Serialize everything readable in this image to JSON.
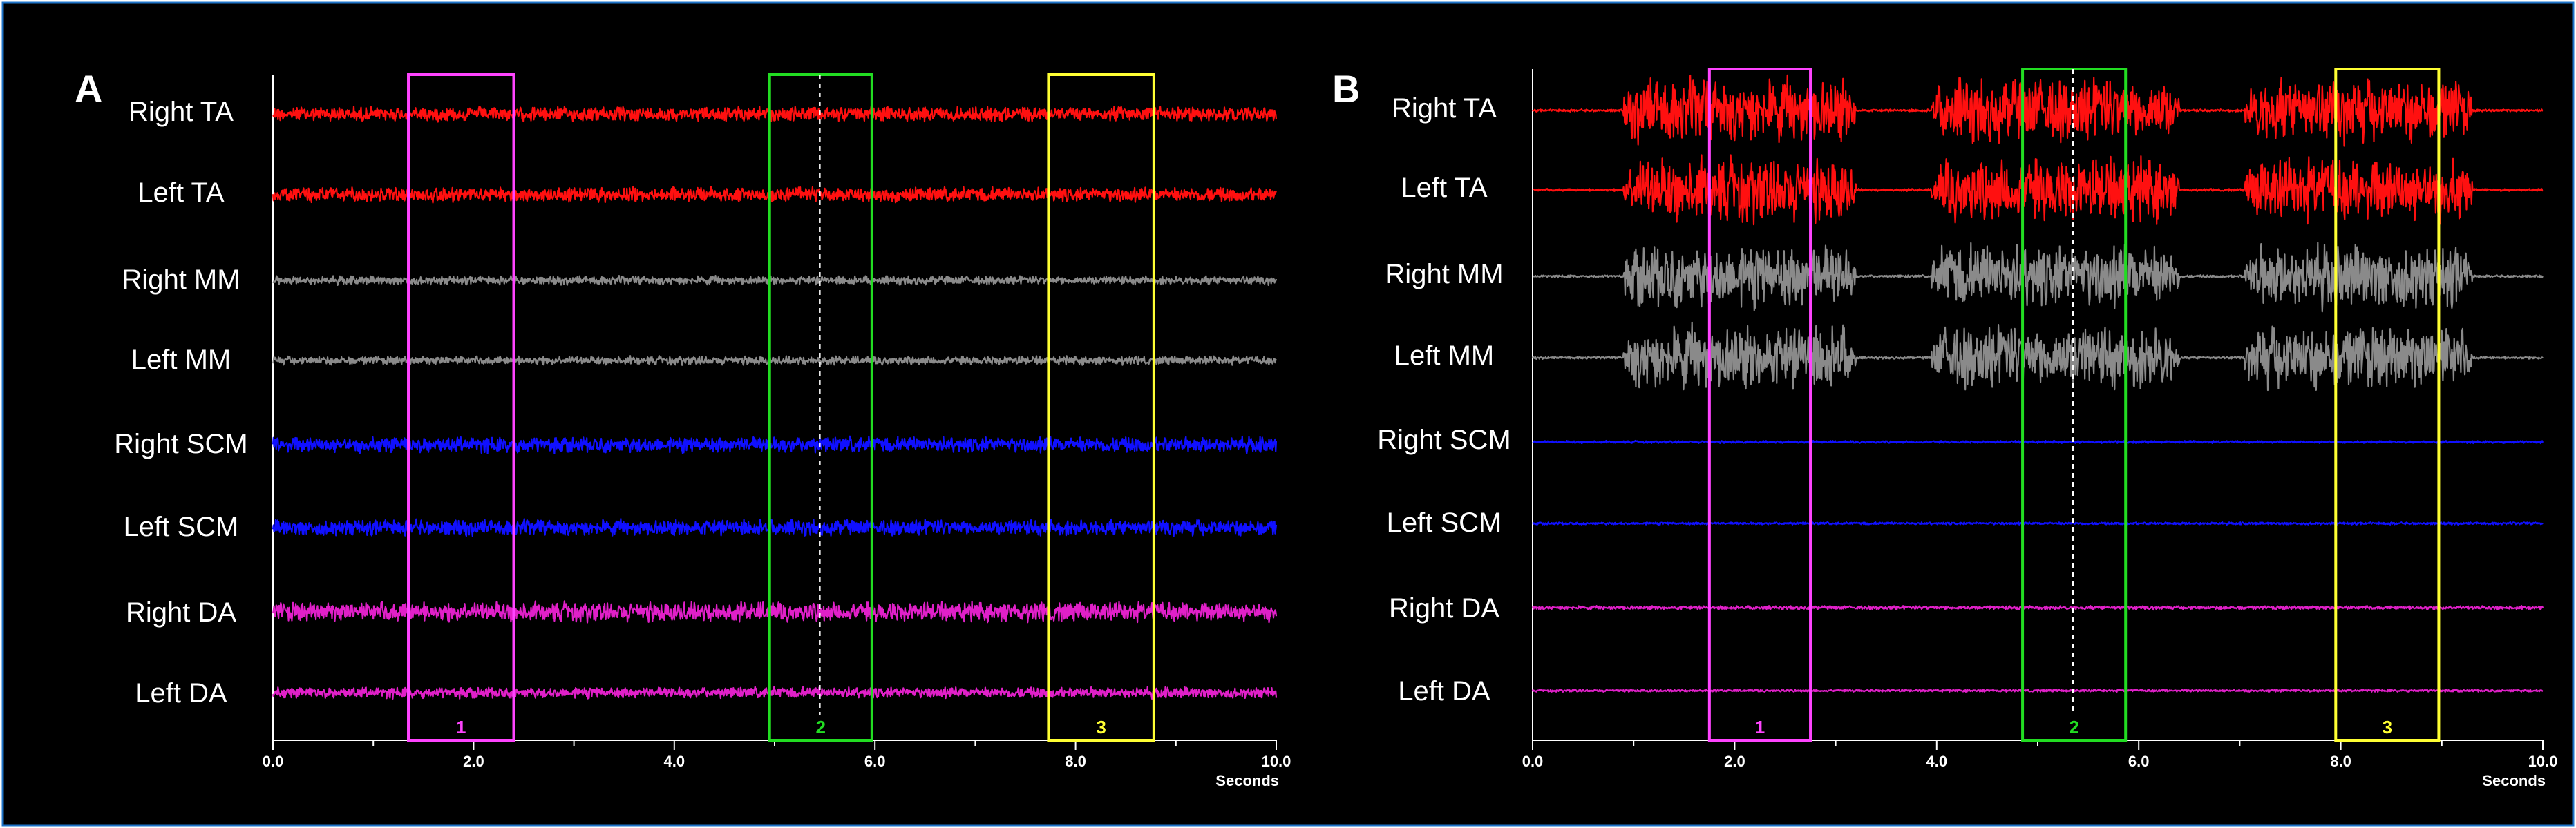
{
  "figure": {
    "background_color": "#000000",
    "border_color": "#1e73c8"
  },
  "chart_data": [
    {
      "type": "line",
      "panel_label": "A",
      "xlabel": "Seconds",
      "xlim": [
        0,
        10
      ],
      "ticks": [
        "0.0",
        "2.0",
        "4.0",
        "6.0",
        "8.0",
        "10.0"
      ],
      "midline_x": 5.45,
      "windows": [
        {
          "label": "1",
          "start": 1.35,
          "end": 2.4,
          "color": "#ff44ff"
        },
        {
          "label": "2",
          "start": 4.95,
          "end": 5.97,
          "color": "#22dd22"
        },
        {
          "label": "3",
          "start": 7.73,
          "end": 8.78,
          "color": "#ffff33"
        }
      ],
      "channels": [
        {
          "name": "Right TA",
          "color": "#ff1010",
          "noise_amplitude": 12,
          "bursts": []
        },
        {
          "name": "Left TA",
          "color": "#ff1010",
          "noise_amplitude": 12,
          "bursts": []
        },
        {
          "name": "Right MM",
          "color": "#8a8a8a",
          "noise_amplitude": 7,
          "bursts": []
        },
        {
          "name": "Left MM",
          "color": "#8a8a8a",
          "noise_amplitude": 7,
          "bursts": []
        },
        {
          "name": "Right SCM",
          "color": "#1010ff",
          "noise_amplitude": 13,
          "bursts": []
        },
        {
          "name": "Left SCM",
          "color": "#1010ff",
          "noise_amplitude": 13,
          "bursts": []
        },
        {
          "name": "Right DA",
          "color": "#e020c8",
          "noise_amplitude": 16,
          "bursts": []
        },
        {
          "name": "Left DA",
          "color": "#e020c8",
          "noise_amplitude": 9,
          "bursts": []
        }
      ]
    },
    {
      "type": "line",
      "panel_label": "B",
      "xlabel": "Seconds",
      "xlim": [
        0,
        10
      ],
      "ticks": [
        "0.0",
        "2.0",
        "4.0",
        "6.0",
        "8.0",
        "10.0"
      ],
      "midline_x": 5.35,
      "windows": [
        {
          "label": "1",
          "start": 1.75,
          "end": 2.75,
          "color": "#ff44ff"
        },
        {
          "label": "2",
          "start": 4.85,
          "end": 5.87,
          "color": "#22dd22"
        },
        {
          "label": "3",
          "start": 7.95,
          "end": 8.97,
          "color": "#ffff33"
        }
      ],
      "channels": [
        {
          "name": "Right TA",
          "color": "#ff1010",
          "noise_amplitude": 2,
          "bursts": [
            {
              "start": 0.9,
              "end": 3.2,
              "amplitude": 52
            },
            {
              "start": 3.95,
              "end": 6.4,
              "amplitude": 52
            },
            {
              "start": 7.05,
              "end": 9.3,
              "amplitude": 52
            }
          ]
        },
        {
          "name": "Left TA",
          "color": "#ff1010",
          "noise_amplitude": 2,
          "bursts": [
            {
              "start": 0.9,
              "end": 3.2,
              "amplitude": 52
            },
            {
              "start": 3.95,
              "end": 6.4,
              "amplitude": 52
            },
            {
              "start": 7.05,
              "end": 9.3,
              "amplitude": 52
            }
          ]
        },
        {
          "name": "Right MM",
          "color": "#8a8a8a",
          "noise_amplitude": 2,
          "bursts": [
            {
              "start": 0.9,
              "end": 3.2,
              "amplitude": 52
            },
            {
              "start": 3.95,
              "end": 6.4,
              "amplitude": 52
            },
            {
              "start": 7.05,
              "end": 9.3,
              "amplitude": 52
            }
          ]
        },
        {
          "name": "Left MM",
          "color": "#8a8a8a",
          "noise_amplitude": 2,
          "bursts": [
            {
              "start": 0.9,
              "end": 3.2,
              "amplitude": 52
            },
            {
              "start": 3.95,
              "end": 6.4,
              "amplitude": 52
            },
            {
              "start": 7.05,
              "end": 9.3,
              "amplitude": 52
            }
          ]
        },
        {
          "name": "Right SCM",
          "color": "#1010ff",
          "noise_amplitude": 2,
          "bursts": []
        },
        {
          "name": "Left SCM",
          "color": "#1010ff",
          "noise_amplitude": 2,
          "bursts": []
        },
        {
          "name": "Right DA",
          "color": "#e020c8",
          "noise_amplitude": 3,
          "bursts": []
        },
        {
          "name": "Left DA",
          "color": "#e020c8",
          "noise_amplitude": 2,
          "bursts": []
        }
      ]
    }
  ]
}
